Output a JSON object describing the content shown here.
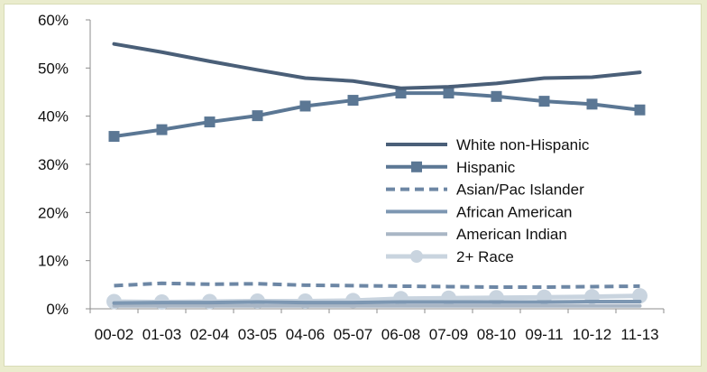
{
  "chart_data": {
    "type": "line",
    "title": "",
    "xlabel": "",
    "ylabel": "",
    "ylim": [
      0,
      60
    ],
    "y_ticks": [
      "0%",
      "10%",
      "20%",
      "30%",
      "40%",
      "50%",
      "60%"
    ],
    "categories": [
      "00-02",
      "01-03",
      "02-04",
      "03-05",
      "04-06",
      "05-07",
      "06-08",
      "07-09",
      "08-10",
      "09-11",
      "10-12",
      "11-13"
    ],
    "legend_position": "center-right",
    "grid": false,
    "series": [
      {
        "name": "White non-Hispanic",
        "color": "#4a5f78",
        "style": "solid",
        "marker": "none",
        "values": [
          55.0,
          53.3,
          51.4,
          49.6,
          47.9,
          47.3,
          45.8,
          46.1,
          46.8,
          47.9,
          48.1,
          49.1
        ]
      },
      {
        "name": "Hispanic",
        "color": "#5b7794",
        "style": "solid",
        "marker": "square",
        "values": [
          35.8,
          37.2,
          38.8,
          40.1,
          42.1,
          43.3,
          44.8,
          44.8,
          44.1,
          43.1,
          42.5,
          41.3
        ]
      },
      {
        "name": "Asian/Pac Islander",
        "color": "#6d87a5",
        "style": "dashed",
        "marker": "none",
        "values": [
          4.8,
          5.3,
          5.1,
          5.2,
          4.9,
          4.8,
          4.7,
          4.6,
          4.5,
          4.5,
          4.6,
          4.7
        ]
      },
      {
        "name": "African American",
        "color": "#7d97b2",
        "style": "solid",
        "marker": "none",
        "values": [
          1.2,
          1.3,
          1.3,
          1.4,
          1.3,
          1.3,
          1.4,
          1.4,
          1.4,
          1.4,
          1.5,
          1.5
        ]
      },
      {
        "name": "American Indian",
        "color": "#a9b6c5",
        "style": "solid",
        "marker": "none",
        "values": [
          0.6,
          0.6,
          0.6,
          0.6,
          0.6,
          0.6,
          0.6,
          0.6,
          0.6,
          0.6,
          0.6,
          0.6
        ]
      },
      {
        "name": "2+ Race",
        "color": "#c9d4df",
        "style": "solid",
        "marker": "circle",
        "values": [
          1.5,
          1.4,
          1.5,
          1.6,
          1.6,
          1.7,
          2.1,
          2.2,
          2.3,
          2.4,
          2.5,
          2.7
        ]
      }
    ]
  }
}
